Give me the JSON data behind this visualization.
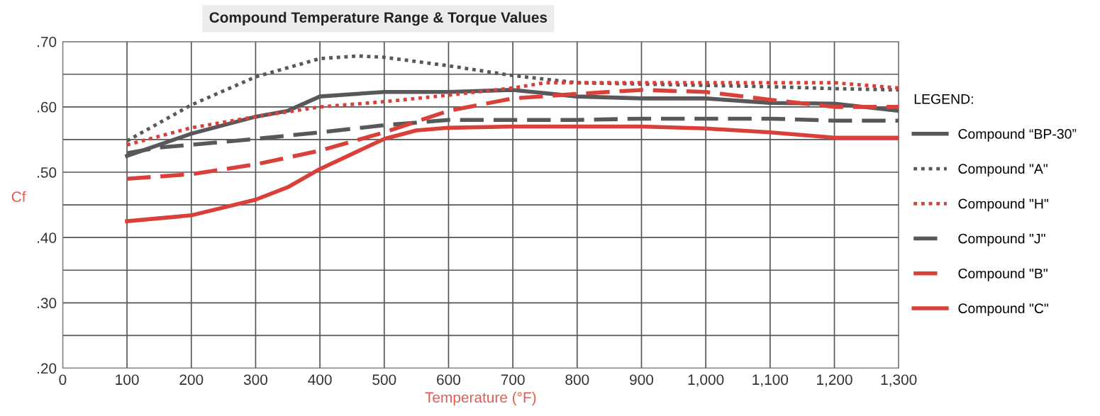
{
  "chart_data": {
    "type": "line",
    "title": "Compound Temperature Range & Torque Values",
    "xlabel": "Temperature (°F)",
    "ylabel": "Cf",
    "legend_title": "LEGEND:",
    "legend": "right",
    "grid": true,
    "marker": "none",
    "xlim": [
      0,
      1300
    ],
    "xticks": [
      0,
      100,
      200,
      300,
      400,
      500,
      600,
      700,
      800,
      900,
      {
        "value": 1000,
        "label": "1,000"
      },
      {
        "value": 1100,
        "label": "1,100"
      },
      {
        "value": 1200,
        "label": "1,200"
      },
      {
        "value": 1300,
        "label": "1,300"
      }
    ],
    "ylim": [
      0.2,
      0.7
    ],
    "yticks": [
      {
        "value": 0.2,
        "label": ".20"
      },
      {
        "value": 0.25,
        "label": null
      },
      {
        "value": 0.3,
        "label": ".30"
      },
      {
        "value": 0.35,
        "label": null
      },
      {
        "value": 0.4,
        "label": ".40"
      },
      {
        "value": 0.45,
        "label": null
      },
      {
        "value": 0.5,
        "label": ".50"
      },
      {
        "value": 0.55,
        "label": null
      },
      {
        "value": 0.6,
        "label": ".60"
      },
      {
        "value": 0.65,
        "label": null
      },
      {
        "value": 0.7,
        "label": ".70"
      }
    ],
    "series": [
      {
        "name": "Compound “BP-30”",
        "color": "#58585a",
        "line_style": "solid",
        "x": [
          100,
          200,
          300,
          350,
          400,
          500,
          600,
          700,
          800,
          900,
          1000,
          1100,
          1200,
          1300
        ],
        "values": [
          0.525,
          0.559,
          0.585,
          0.594,
          0.616,
          0.623,
          0.623,
          0.626,
          0.616,
          0.613,
          0.613,
          0.606,
          0.605,
          0.594
        ]
      },
      {
        "name": "Compound \"A\"",
        "color": "#58585a",
        "line_style": "dotted",
        "x": [
          100,
          200,
          300,
          400,
          460,
          500,
          600,
          700,
          800,
          900,
          1000,
          1100,
          1200,
          1300
        ],
        "values": [
          0.548,
          0.603,
          0.646,
          0.674,
          0.678,
          0.676,
          0.663,
          0.648,
          0.637,
          0.635,
          0.633,
          0.631,
          0.628,
          0.626
        ]
      },
      {
        "name": "Compound \"H\"",
        "color": "#d9403a",
        "line_style": "dotted",
        "x": [
          100,
          200,
          300,
          400,
          500,
          600,
          700,
          750,
          800,
          900,
          1000,
          1100,
          1200,
          1300
        ],
        "values": [
          0.542,
          0.568,
          0.585,
          0.6,
          0.608,
          0.618,
          0.629,
          0.637,
          0.637,
          0.637,
          0.637,
          0.637,
          0.637,
          0.629
        ]
      },
      {
        "name": "Compound \"J\"",
        "color": "#58585a",
        "line_style": "dashed",
        "x": [
          100,
          150,
          200,
          300,
          400,
          500,
          600,
          700,
          800,
          900,
          1000,
          1100,
          1200,
          1300
        ],
        "values": [
          0.529,
          0.538,
          0.542,
          0.551,
          0.561,
          0.572,
          0.58,
          0.58,
          0.58,
          0.582,
          0.582,
          0.582,
          0.579,
          0.579
        ]
      },
      {
        "name": "Compound \"B\"",
        "color": "#d9403a",
        "line_style": "dashed",
        "x": [
          100,
          200,
          300,
          400,
          500,
          600,
          700,
          800,
          900,
          1000,
          1100,
          1200,
          1300
        ],
        "values": [
          0.49,
          0.497,
          0.512,
          0.533,
          0.561,
          0.594,
          0.613,
          0.62,
          0.626,
          0.623,
          0.611,
          0.6,
          0.6
        ]
      },
      {
        "name": "Compound \"C\"",
        "color": "#d9403a",
        "line_style": "solid",
        "x": [
          100,
          200,
          300,
          350,
          400,
          500,
          550,
          600,
          700,
          800,
          900,
          1000,
          1100,
          1200,
          1300
        ],
        "values": [
          0.425,
          0.434,
          0.458,
          0.477,
          0.505,
          0.551,
          0.564,
          0.568,
          0.57,
          0.57,
          0.57,
          0.567,
          0.561,
          0.553,
          0.553
        ]
      }
    ]
  }
}
